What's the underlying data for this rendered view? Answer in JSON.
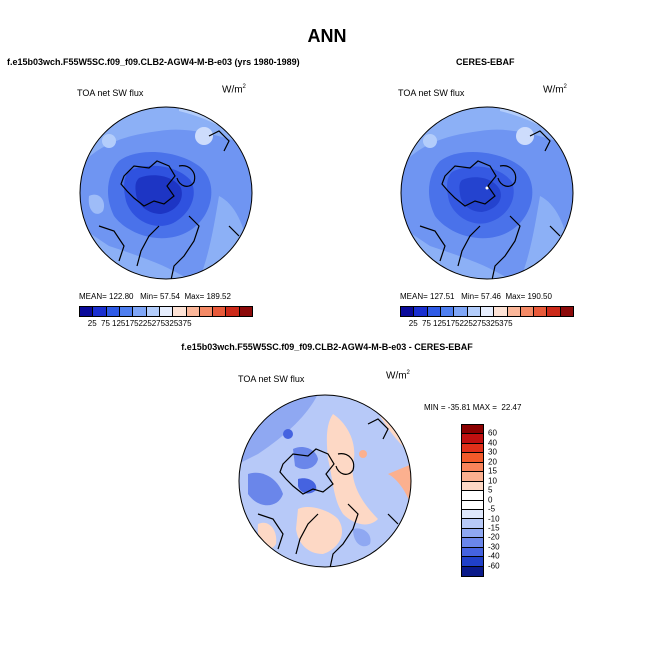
{
  "page_title": "ANN",
  "panels": [
    {
      "case_title": "f.e15b03wch.F55W5SC.f09_f09.CLB2-AGW4-M-B-e03 (yrs 1980-1989)",
      "variable": "TOA net SW flux",
      "units_base": "W/m",
      "units_exp": "2",
      "mean_label": "MEAN=",
      "mean_value": "122.80",
      "min_label": "Min=",
      "min_value": "57.54",
      "max_label": "Max=",
      "max_value": "189.52",
      "colorbar_labels": [
        "25",
        "75",
        "125",
        "175",
        "225",
        "275",
        "325",
        "375"
      ]
    },
    {
      "case_title": "CERES-EBAF",
      "variable": "TOA net SW flux",
      "units_base": "W/m",
      "units_exp": "2",
      "mean_label": "MEAN=",
      "mean_value": "127.51",
      "min_label": "Min=",
      "min_value": "57.46",
      "max_label": "Max=",
      "max_value": "190.50",
      "colorbar_labels": [
        "25",
        "75",
        "125",
        "175",
        "225",
        "275",
        "325",
        "375"
      ]
    }
  ],
  "difference_panel": {
    "case_title": "f.e15b03wch.F55W5SC.f09_f09.CLB2-AGW4-M-B-e03 - CERES-EBAF",
    "variable": "TOA net SW flux",
    "units_base": "W/m",
    "units_exp": "2",
    "min_label": "MIN =",
    "min_value": "-35.81",
    "max_label": "MAX =",
    "max_value": "22.47",
    "colorbar_labels": [
      "60",
      "40",
      "30",
      "20",
      "15",
      "10",
      "5",
      "0",
      "-5",
      "-10",
      "-15",
      "-20",
      "-30",
      "-40",
      "-60"
    ]
  },
  "colors": {
    "abs_scale": [
      "#0a0a9a",
      "#1a2fd0",
      "#2f5be6",
      "#4f7ff0",
      "#7fa6f7",
      "#b3cdfb",
      "#e6eefe",
      "#fde3d6",
      "#fbb79a",
      "#f48a66",
      "#e85a3a",
      "#cc2a1a",
      "#8c0a0a"
    ],
    "diff_scale": [
      "#8b0000",
      "#c01010",
      "#e0301a",
      "#f25a2a",
      "#f8845a",
      "#fbb08f",
      "#fdd8c5",
      "#ffffff",
      "#dfe8fc",
      "#b7c9f8",
      "#8fa8f2",
      "#6a86ea",
      "#4563e0",
      "#2040c8",
      "#0a1a8a"
    ]
  }
}
